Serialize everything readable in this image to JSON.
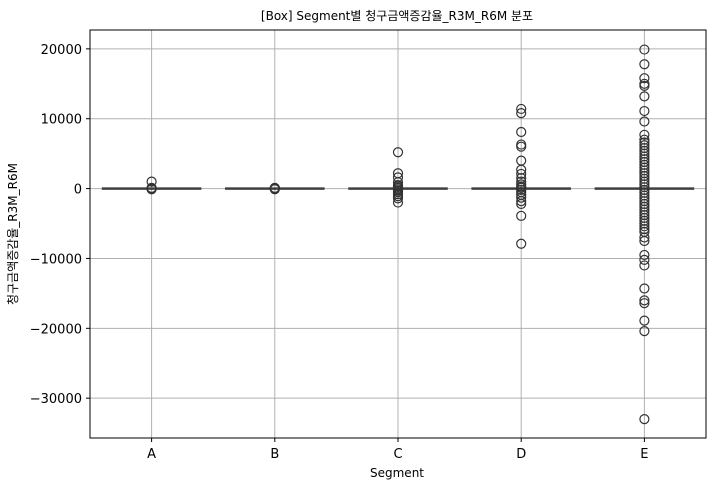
{
  "chart_data": {
    "type": "box",
    "title": "[Box] Segment별 청구금액증감율_R3M_R6M 분포",
    "xlabel": "Segment",
    "ylabel": "청구금액증감율_R3M_R6M",
    "categories": [
      "A",
      "B",
      "C",
      "D",
      "E"
    ],
    "ylim": [
      -35700,
      22700
    ],
    "yticks": [
      20000,
      10000,
      0,
      -10000,
      -20000,
      -30000
    ],
    "ytick_labels": [
      "20000",
      "10000",
      "0",
      "−10000",
      "−20000",
      "−30000"
    ],
    "grid": true,
    "box_color": "#1f77b4",
    "outlier_color": "#333333",
    "boxes": [
      {
        "category": "A",
        "q1": 0,
        "median": 0,
        "q3": 0,
        "whisker_low": 0,
        "whisker_high": 0,
        "outliers": [
          1000,
          0,
          -100,
          100
        ]
      },
      {
        "category": "B",
        "q1": 0,
        "median": 0,
        "q3": 0,
        "whisker_low": 0,
        "whisker_high": 0,
        "outliers": [
          0,
          -100,
          100,
          50
        ]
      },
      {
        "category": "C",
        "q1": 0,
        "median": 0,
        "q3": 0,
        "whisker_low": 0,
        "whisker_high": 0,
        "outliers": [
          5200,
          2200,
          1600,
          900,
          500,
          300,
          100,
          -100,
          -300,
          -500,
          -800,
          -1100,
          -1400,
          -2000
        ]
      },
      {
        "category": "D",
        "q1": 0,
        "median": 0,
        "q3": 0,
        "whisker_low": 0,
        "whisker_high": 0,
        "outliers": [
          11400,
          10800,
          8100,
          6300,
          6000,
          4000,
          2700,
          2100,
          1500,
          1000,
          600,
          300,
          100,
          -200,
          -500,
          -900,
          -1300,
          -1800,
          -2200,
          -3900,
          -7900
        ]
      },
      {
        "category": "E",
        "q1": 0,
        "median": 0,
        "q3": 0,
        "whisker_low": 0,
        "whisker_high": 0,
        "outliers": [
          19900,
          17800,
          15800,
          15000,
          14700,
          13200,
          11100,
          9600,
          7700,
          7000,
          6600,
          6200,
          5800,
          5400,
          5000,
          4600,
          4200,
          3800,
          3400,
          3000,
          2600,
          2200,
          1800,
          1400,
          1000,
          600,
          200,
          -200,
          -600,
          -1000,
          -1400,
          -1800,
          -2200,
          -2600,
          -3000,
          -3400,
          -3800,
          -4200,
          -4600,
          -5000,
          -5400,
          -5800,
          -6200,
          -7000,
          -7500,
          -9500,
          -10200,
          -11000,
          -14300,
          -16000,
          -16400,
          -18900,
          -20400,
          -33000
        ]
      }
    ]
  }
}
